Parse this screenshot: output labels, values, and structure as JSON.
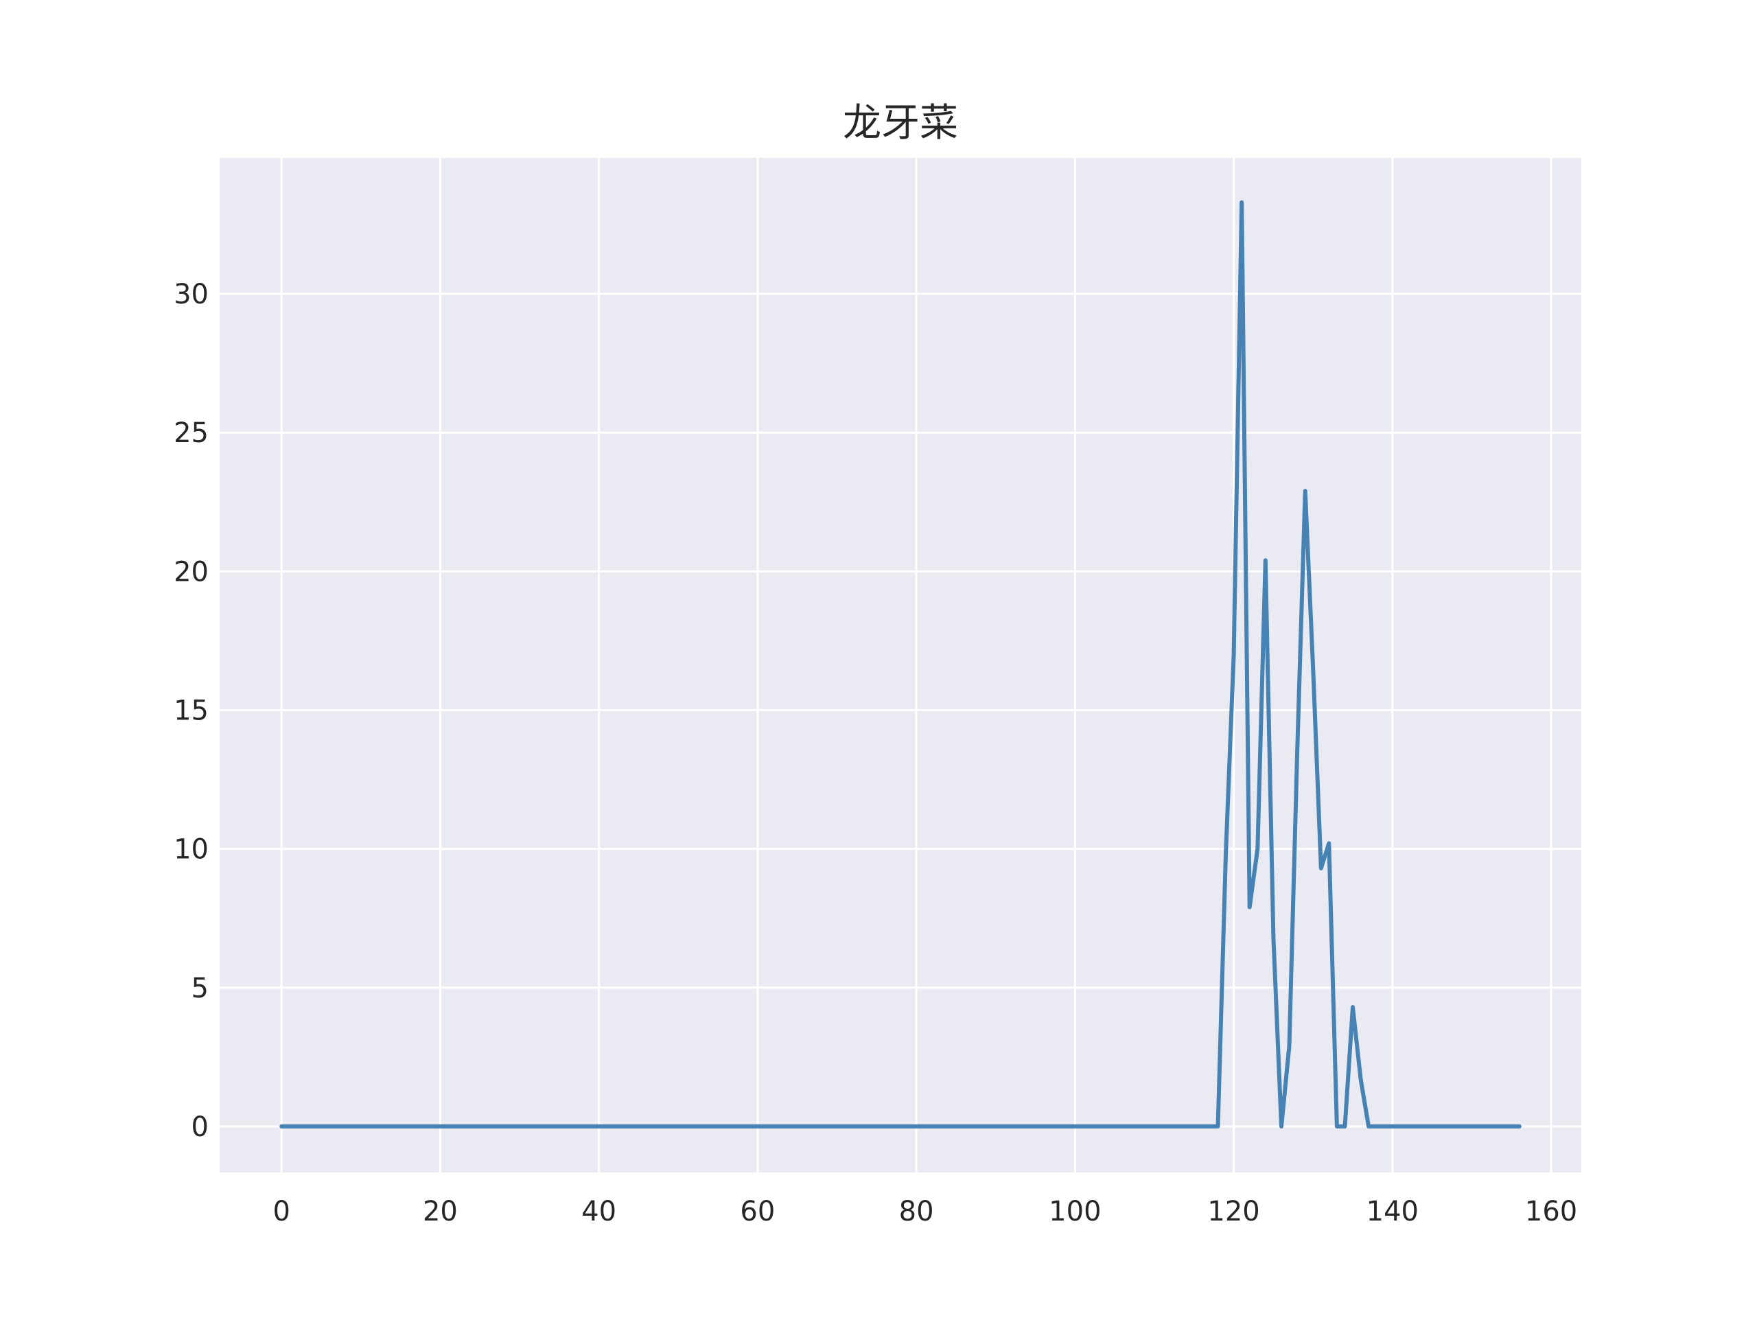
{
  "chart_data": {
    "type": "line",
    "title": "龙牙菜",
    "xlabel": "",
    "ylabel": "",
    "xlim": [
      -7.8,
      163.8
    ],
    "ylim": [
      -1.66,
      34.9
    ],
    "xticks": [
      0,
      20,
      40,
      60,
      80,
      100,
      120,
      140,
      160
    ],
    "yticks": [
      0,
      5,
      10,
      15,
      20,
      25,
      30
    ],
    "grid": true,
    "background_color": "#eaeaf2",
    "line_color": "#4682b4",
    "series": [
      {
        "x": [
          0,
          118,
          119,
          120,
          121,
          122,
          123,
          124,
          125,
          126,
          127,
          128,
          129,
          130,
          131,
          132,
          133,
          134,
          135,
          136,
          137,
          156
        ],
        "values": [
          0,
          0,
          9.8,
          17,
          33.3,
          7.9,
          10,
          20.4,
          6.8,
          0,
          2.9,
          13.5,
          22.9,
          16.5,
          9.3,
          10.2,
          0,
          0,
          4.3,
          1.7,
          0,
          0
        ]
      }
    ]
  }
}
